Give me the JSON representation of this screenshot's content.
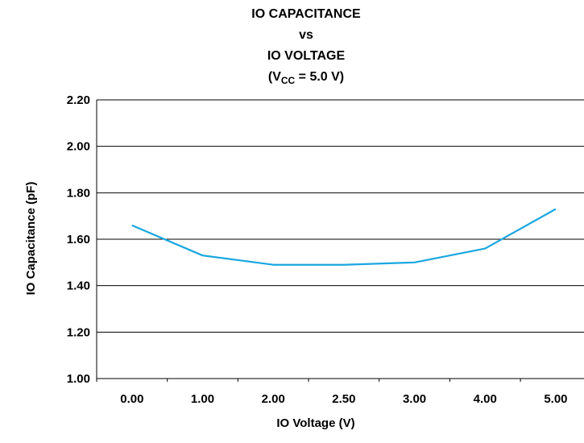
{
  "chart_data": {
    "type": "line",
    "title": [
      "IO CAPACITANCE",
      "vs",
      "IO VOLTAGE"
    ],
    "subtitle": {
      "prefix": "(V",
      "sub": "CC",
      "suffix": " = 5.0 V)"
    },
    "xlabel": "IO  Voltage (V)",
    "ylabel": "IO Capacitance (pF)",
    "categories": [
      "0.00",
      "1.00",
      "2.00",
      "2.50",
      "3.00",
      "4.00",
      "5.00"
    ],
    "series": [
      {
        "values": [
          1.66,
          1.53,
          1.49,
          1.49,
          1.5,
          1.56,
          1.73
        ],
        "color": "#1aa7e0"
      }
    ],
    "ylim": [
      1.0,
      2.2
    ],
    "yticks": [
      1.0,
      1.2,
      1.4,
      1.6,
      1.8,
      2.0,
      2.2
    ],
    "ytick_labels": [
      "1.00",
      "1.20",
      "1.40",
      "1.60",
      "1.80",
      "2.00",
      "2.20"
    ],
    "grid": "horizontal",
    "legend": "none",
    "colors": {
      "line": "#1aa7e0",
      "axis": "#000000",
      "grid": "#000000"
    }
  }
}
